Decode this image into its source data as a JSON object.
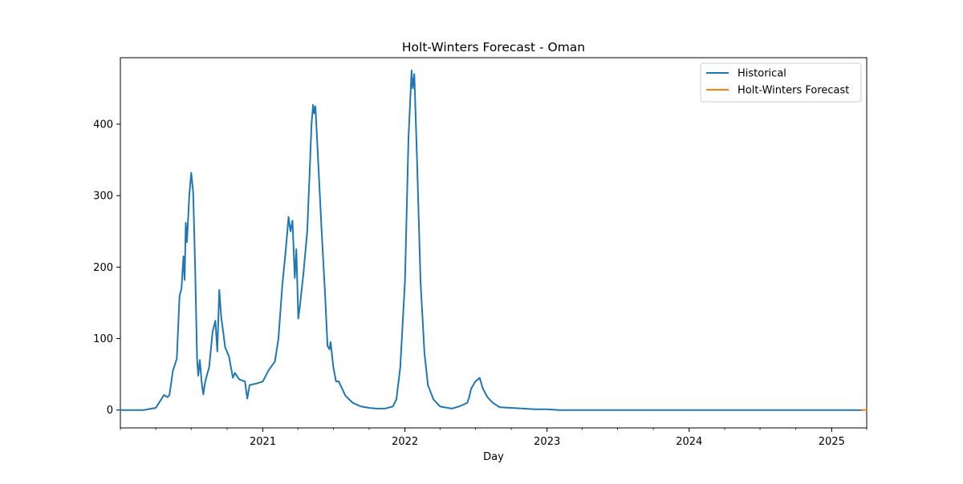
{
  "chart_data": {
    "type": "line",
    "title": "Holt-Winters Forecast - Oman",
    "xlabel": "Day",
    "ylabel": "",
    "x_axis_type": "date",
    "xlim": [
      "2020-01-01",
      "2025-04-01"
    ],
    "ylim": [
      -25,
      493
    ],
    "x_ticks": [
      {
        "date": "2021-01-01",
        "label": "2021"
      },
      {
        "date": "2022-01-01",
        "label": "2022"
      },
      {
        "date": "2023-01-01",
        "label": "2023"
      },
      {
        "date": "2024-01-01",
        "label": "2024"
      },
      {
        "date": "2025-01-01",
        "label": "2025"
      }
    ],
    "y_ticks": [
      0,
      100,
      200,
      300,
      400
    ],
    "grid": false,
    "legend_position": "top-right",
    "series": [
      {
        "name": "Historical",
        "color": "#1f77b4",
        "points": [
          [
            "2020-01-01",
            0
          ],
          [
            "2020-03-01",
            0
          ],
          [
            "2020-04-01",
            3
          ],
          [
            "2020-04-15",
            15
          ],
          [
            "2020-04-22",
            21
          ],
          [
            "2020-05-01",
            18
          ],
          [
            "2020-05-06",
            21
          ],
          [
            "2020-05-15",
            55
          ],
          [
            "2020-05-25",
            72
          ],
          [
            "2020-06-01",
            160
          ],
          [
            "2020-06-06",
            170
          ],
          [
            "2020-06-11",
            215
          ],
          [
            "2020-06-14",
            182
          ],
          [
            "2020-06-17",
            262
          ],
          [
            "2020-06-20",
            235
          ],
          [
            "2020-06-26",
            300
          ],
          [
            "2020-07-01",
            332
          ],
          [
            "2020-07-06",
            305
          ],
          [
            "2020-07-11",
            200
          ],
          [
            "2020-07-16",
            72
          ],
          [
            "2020-07-19",
            48
          ],
          [
            "2020-07-23",
            70
          ],
          [
            "2020-07-28",
            38
          ],
          [
            "2020-08-01",
            22
          ],
          [
            "2020-08-06",
            40
          ],
          [
            "2020-08-16",
            60
          ],
          [
            "2020-08-25",
            110
          ],
          [
            "2020-09-01",
            125
          ],
          [
            "2020-09-06",
            82
          ],
          [
            "2020-09-11",
            168
          ],
          [
            "2020-09-16",
            130
          ],
          [
            "2020-09-21",
            110
          ],
          [
            "2020-09-26",
            88
          ],
          [
            "2020-10-06",
            75
          ],
          [
            "2020-10-16",
            45
          ],
          [
            "2020-10-21",
            52
          ],
          [
            "2020-11-01",
            43
          ],
          [
            "2020-11-16",
            40
          ],
          [
            "2020-11-22",
            16
          ],
          [
            "2020-11-28",
            35
          ],
          [
            "2020-12-15",
            37
          ],
          [
            "2021-01-01",
            40
          ],
          [
            "2021-01-15",
            55
          ],
          [
            "2021-02-01",
            68
          ],
          [
            "2021-02-10",
            100
          ],
          [
            "2021-02-20",
            175
          ],
          [
            "2021-03-01",
            225
          ],
          [
            "2021-03-08",
            270
          ],
          [
            "2021-03-13",
            250
          ],
          [
            "2021-03-18",
            265
          ],
          [
            "2021-03-24",
            185
          ],
          [
            "2021-03-28",
            225
          ],
          [
            "2021-04-02",
            128
          ],
          [
            "2021-04-07",
            150
          ],
          [
            "2021-04-15",
            190
          ],
          [
            "2021-04-25",
            250
          ],
          [
            "2021-05-01",
            330
          ],
          [
            "2021-05-06",
            400
          ],
          [
            "2021-05-10",
            427
          ],
          [
            "2021-05-13",
            415
          ],
          [
            "2021-05-16",
            425
          ],
          [
            "2021-05-22",
            360
          ],
          [
            "2021-06-01",
            250
          ],
          [
            "2021-06-10",
            160
          ],
          [
            "2021-06-16",
            90
          ],
          [
            "2021-06-21",
            85
          ],
          [
            "2021-06-24",
            95
          ],
          [
            "2021-07-01",
            60
          ],
          [
            "2021-07-08",
            40
          ],
          [
            "2021-07-15",
            40
          ],
          [
            "2021-08-01",
            20
          ],
          [
            "2021-08-20",
            10
          ],
          [
            "2021-09-10",
            5
          ],
          [
            "2021-10-01",
            3
          ],
          [
            "2021-10-20",
            2
          ],
          [
            "2021-11-10",
            2
          ],
          [
            "2021-12-01",
            5
          ],
          [
            "2021-12-10",
            15
          ],
          [
            "2021-12-20",
            60
          ],
          [
            "2022-01-01",
            180
          ],
          [
            "2022-01-10",
            380
          ],
          [
            "2022-01-18",
            475
          ],
          [
            "2022-01-21",
            450
          ],
          [
            "2022-01-25",
            470
          ],
          [
            "2022-02-01",
            350
          ],
          [
            "2022-02-10",
            180
          ],
          [
            "2022-02-20",
            80
          ],
          [
            "2022-03-01",
            35
          ],
          [
            "2022-03-15",
            15
          ],
          [
            "2022-04-01",
            5
          ],
          [
            "2022-05-01",
            2
          ],
          [
            "2022-05-20",
            5
          ],
          [
            "2022-06-10",
            10
          ],
          [
            "2022-06-15",
            18
          ],
          [
            "2022-06-20",
            30
          ],
          [
            "2022-07-01",
            40
          ],
          [
            "2022-07-12",
            45
          ],
          [
            "2022-07-20",
            30
          ],
          [
            "2022-08-01",
            18
          ],
          [
            "2022-08-15",
            10
          ],
          [
            "2022-09-01",
            4
          ],
          [
            "2022-10-01",
            3
          ],
          [
            "2022-11-01",
            2
          ],
          [
            "2022-12-01",
            1
          ],
          [
            "2023-01-01",
            1
          ],
          [
            "2023-02-01",
            0
          ],
          [
            "2025-03-20",
            0
          ]
        ]
      },
      {
        "name": "Holt-Winters Forecast",
        "color": "#ff7f0e",
        "points": [
          [
            "2025-03-20",
            0
          ],
          [
            "2025-04-01",
            0
          ]
        ]
      }
    ]
  }
}
